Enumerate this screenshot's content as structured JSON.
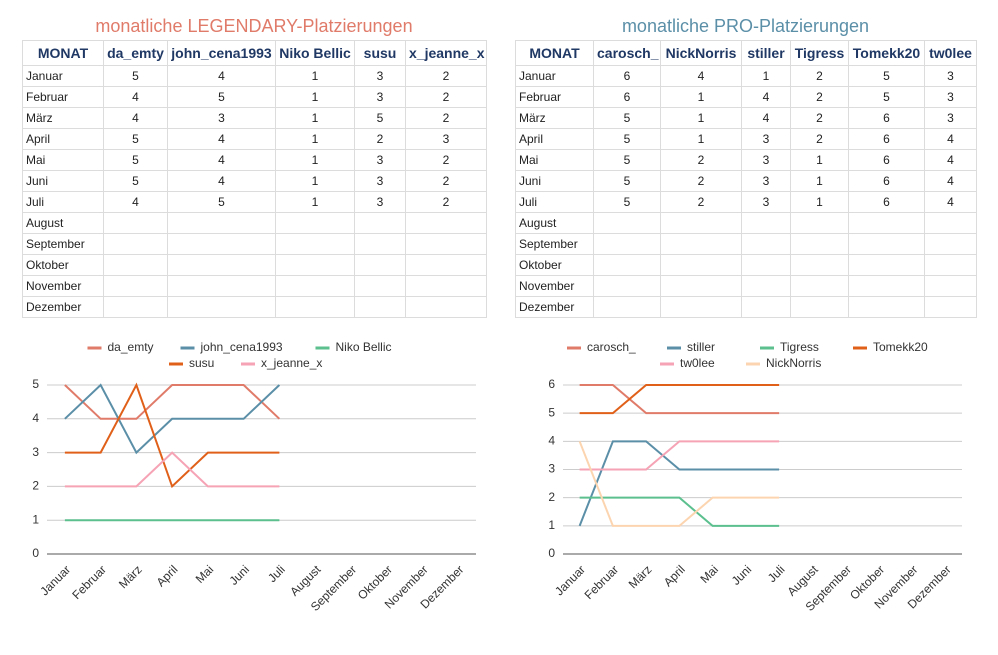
{
  "tables": [
    {
      "title": "monatliche LEGENDARY-Platzierungen",
      "header": [
        "MONAT",
        "da_emty",
        "john_cena1993",
        "Niko Bellic",
        "susu",
        "x_jeanne_x"
      ],
      "rows": [
        [
          "Januar",
          5,
          4,
          1,
          3,
          2
        ],
        [
          "Februar",
          4,
          5,
          1,
          3,
          2
        ],
        [
          "März",
          4,
          3,
          1,
          5,
          2
        ],
        [
          "April",
          5,
          4,
          1,
          2,
          3
        ],
        [
          "Mai",
          5,
          4,
          1,
          3,
          2
        ],
        [
          "Juni",
          5,
          4,
          1,
          3,
          2
        ],
        [
          "Juli",
          4,
          5,
          1,
          3,
          2
        ],
        [
          "August"
        ],
        [
          "September"
        ],
        [
          "Oktober"
        ],
        [
          "November"
        ],
        [
          "Dezember"
        ]
      ]
    },
    {
      "title": "monatliche PRO-Platzierungen",
      "header": [
        "MONAT",
        "carosch_",
        "NickNorris",
        "stiller",
        "Tigress",
        "Tomekk20",
        "tw0lee"
      ],
      "rows": [
        [
          "Januar",
          6,
          4,
          1,
          2,
          5,
          3
        ],
        [
          "Februar",
          6,
          1,
          4,
          2,
          5,
          3
        ],
        [
          "März",
          5,
          1,
          4,
          2,
          6,
          3
        ],
        [
          "April",
          5,
          1,
          3,
          2,
          6,
          4
        ],
        [
          "Mai",
          5,
          2,
          3,
          1,
          6,
          4
        ],
        [
          "Juni",
          5,
          2,
          3,
          1,
          6,
          4
        ],
        [
          "Juli",
          5,
          2,
          3,
          1,
          6,
          4
        ],
        [
          "August"
        ],
        [
          "September"
        ],
        [
          "Oktober"
        ],
        [
          "November"
        ],
        [
          "Dezember"
        ]
      ]
    }
  ],
  "chart_data": [
    {
      "type": "line",
      "categories": [
        "Januar",
        "Februar",
        "März",
        "April",
        "Mai",
        "Juni",
        "Juli",
        "August",
        "September",
        "Oktober",
        "November",
        "Dezember"
      ],
      "ylim": [
        0,
        5
      ],
      "yticks": [
        0,
        1,
        2,
        3,
        4,
        5
      ],
      "grid": true,
      "series": [
        {
          "name": "da_emty",
          "color": "#e07b6a",
          "values": [
            5,
            4,
            4,
            5,
            5,
            5,
            4,
            null,
            null,
            null,
            null,
            null
          ]
        },
        {
          "name": "john_cena1993",
          "color": "#5b8fa8",
          "values": [
            4,
            5,
            3,
            4,
            4,
            4,
            5,
            null,
            null,
            null,
            null,
            null
          ]
        },
        {
          "name": "Niko Bellic",
          "color": "#5bbf8e",
          "values": [
            1,
            1,
            1,
            1,
            1,
            1,
            1,
            null,
            null,
            null,
            null,
            null
          ]
        },
        {
          "name": "susu",
          "color": "#e0601a",
          "values": [
            3,
            3,
            5,
            2,
            3,
            3,
            3,
            null,
            null,
            null,
            null,
            null
          ]
        },
        {
          "name": "x_jeanne_x",
          "color": "#f5a3b5",
          "values": [
            2,
            2,
            2,
            3,
            2,
            2,
            2,
            null,
            null,
            null,
            null,
            null
          ]
        }
      ]
    },
    {
      "type": "line",
      "categories": [
        "Januar",
        "Februar",
        "März",
        "April",
        "Mai",
        "Juni",
        "Juli",
        "August",
        "September",
        "Oktober",
        "November",
        "Dezember"
      ],
      "ylim": [
        0,
        6
      ],
      "yticks": [
        0,
        1,
        2,
        3,
        4,
        5,
        6
      ],
      "grid": true,
      "series": [
        {
          "name": "carosch_",
          "color": "#e07b6a",
          "values": [
            6,
            6,
            5,
            5,
            5,
            5,
            5,
            null,
            null,
            null,
            null,
            null
          ]
        },
        {
          "name": "stiller",
          "color": "#5b8fa8",
          "values": [
            1,
            4,
            4,
            3,
            3,
            3,
            3,
            null,
            null,
            null,
            null,
            null
          ]
        },
        {
          "name": "Tigress",
          "color": "#5bbf8e",
          "values": [
            2,
            2,
            2,
            2,
            1,
            1,
            1,
            null,
            null,
            null,
            null,
            null
          ]
        },
        {
          "name": "Tomekk20",
          "color": "#e0601a",
          "values": [
            5,
            5,
            6,
            6,
            6,
            6,
            6,
            null,
            null,
            null,
            null,
            null
          ]
        },
        {
          "name": "tw0lee",
          "color": "#f5a3b5",
          "values": [
            3,
            3,
            3,
            4,
            4,
            4,
            4,
            null,
            null,
            null,
            null,
            null
          ]
        },
        {
          "name": "NickNorris",
          "color": "#fcd5b0",
          "values": [
            4,
            1,
            1,
            1,
            2,
            2,
            2,
            null,
            null,
            null,
            null,
            null
          ]
        }
      ]
    }
  ]
}
